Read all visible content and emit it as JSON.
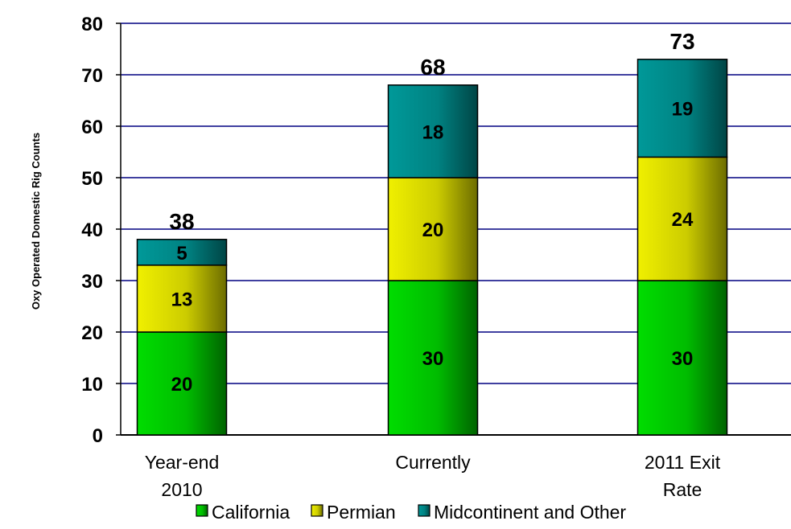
{
  "chart_data": {
    "type": "bar",
    "stacked": true,
    "title": "",
    "xlabel": "",
    "ylabel": "Oxy Operated Domestic Rig Counts",
    "ylim": [
      0,
      80
    ],
    "yticks": [
      0,
      10,
      20,
      30,
      40,
      50,
      60,
      70,
      80
    ],
    "grid": true,
    "legend_position": "bottom",
    "categories": [
      [
        "Year-end",
        "2010"
      ],
      [
        "Currently"
      ],
      [
        "2011 Exit",
        "Rate"
      ]
    ],
    "series": [
      {
        "name": "California",
        "values": [
          20,
          30,
          30
        ],
        "color": "#00dd00"
      },
      {
        "name": "Permian",
        "values": [
          13,
          20,
          24
        ],
        "color": "#f0f000"
      },
      {
        "name": "Midcontinent and Other",
        "values": [
          5,
          18,
          19
        ],
        "color": "#009999"
      }
    ],
    "totals": [
      38,
      68,
      73
    ]
  }
}
